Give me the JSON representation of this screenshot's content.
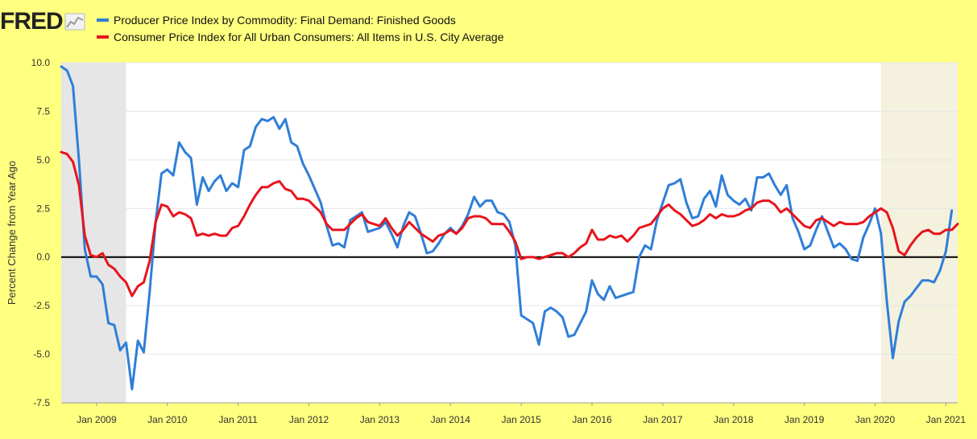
{
  "logo": {
    "text": "FRED",
    "icon": "chart-icon"
  },
  "chart_data": {
    "type": "line",
    "ylabel": "Percent Change from Year Ago",
    "ylim": [
      -7.5,
      10.0
    ],
    "yticks": [
      -7.5,
      -5.0,
      -2.5,
      0.0,
      2.5,
      5.0,
      7.5,
      10.0
    ],
    "ytick_labels": [
      "-7.5",
      "-5.0",
      "-2.5",
      "0.0",
      "2.5",
      "5.0",
      "7.5",
      "10.0"
    ],
    "xlim": [
      "2008-07",
      "2021-03"
    ],
    "xtick_labels": [
      "Jan 2009",
      "Jan 2010",
      "Jan 2011",
      "Jan 2012",
      "Jan 2013",
      "Jan 2014",
      "Jan 2015",
      "Jan 2016",
      "Jan 2017",
      "Jan 2018",
      "Jan 2019",
      "Jan 2020",
      "Jan 2021"
    ],
    "xtick_dates": [
      "2009-01",
      "2010-01",
      "2011-01",
      "2012-01",
      "2013-01",
      "2014-01",
      "2015-01",
      "2016-01",
      "2017-01",
      "2018-01",
      "2019-01",
      "2020-01",
      "2021-01"
    ],
    "grid": true,
    "zero_line": true,
    "legend_position": "top",
    "shaded_regions": [
      {
        "start": "2008-07",
        "end": "2009-06",
        "color": "#e6e6e6"
      },
      {
        "start": "2020-02",
        "end": "2021-03",
        "color": "#f4f1de"
      }
    ],
    "start": "2008-07",
    "series": [
      {
        "name": "Producer Price Index by Commodity: Final Demand: Finished Goods",
        "color": "#2f7ed8",
        "values": [
          9.8,
          9.6,
          8.8,
          5.0,
          0.4,
          -1.0,
          -1.0,
          -1.4,
          -3.4,
          -3.5,
          -4.8,
          -4.4,
          -6.8,
          -4.3,
          -4.9,
          -1.8,
          1.8,
          4.3,
          4.5,
          4.2,
          5.9,
          5.4,
          5.1,
          2.7,
          4.1,
          3.4,
          3.9,
          4.2,
          3.4,
          3.8,
          3.6,
          5.5,
          5.7,
          6.7,
          7.1,
          7.0,
          7.2,
          6.6,
          7.1,
          5.9,
          5.7,
          4.8,
          4.2,
          3.5,
          2.8,
          1.6,
          0.6,
          0.7,
          0.5,
          1.9,
          2.1,
          2.3,
          1.3,
          1.4,
          1.5,
          1.8,
          1.2,
          0.5,
          1.6,
          2.3,
          2.1,
          1.2,
          0.2,
          0.3,
          0.7,
          1.2,
          1.5,
          1.2,
          1.6,
          2.2,
          3.1,
          2.6,
          2.9,
          2.9,
          2.3,
          2.2,
          1.8,
          0.6,
          -3.0,
          -3.2,
          -3.4,
          -4.5,
          -2.8,
          -2.6,
          -2.8,
          -3.1,
          -4.1,
          -4.0,
          -3.4,
          -2.8,
          -1.2,
          -1.9,
          -2.2,
          -1.5,
          -2.1,
          -2.0,
          -1.9,
          -1.8,
          0.0,
          0.6,
          0.4,
          1.9,
          2.8,
          3.7,
          3.8,
          4.0,
          2.8,
          2.0,
          2.1,
          3.0,
          3.4,
          2.6,
          4.2,
          3.2,
          2.9,
          2.7,
          3.0,
          2.4,
          4.1,
          4.1,
          4.3,
          3.7,
          3.2,
          3.7,
          2.0,
          1.3,
          0.4,
          0.6,
          1.4,
          2.1,
          1.3,
          0.5,
          0.7,
          0.4,
          -0.1,
          -0.2,
          1.0,
          1.7,
          2.5,
          1.2,
          -2.3,
          -5.2,
          -3.3,
          -2.3,
          -2.0,
          -1.6,
          -1.2,
          -1.2,
          -1.3,
          -0.7,
          0.3,
          2.4
        ]
      },
      {
        "name": "Consumer Price Index for All Urban Consumers: All Items in U.S. City Average",
        "color": "#e8141c",
        "values": [
          5.4,
          5.3,
          4.9,
          3.7,
          1.1,
          0.1,
          0.0,
          0.2,
          -0.4,
          -0.6,
          -1.0,
          -1.3,
          -2.0,
          -1.5,
          -1.3,
          -0.2,
          1.8,
          2.7,
          2.6,
          2.1,
          2.3,
          2.2,
          2.0,
          1.1,
          1.2,
          1.1,
          1.2,
          1.1,
          1.1,
          1.5,
          1.6,
          2.1,
          2.7,
          3.2,
          3.6,
          3.6,
          3.8,
          3.9,
          3.5,
          3.4,
          3.0,
          3.0,
          2.9,
          2.6,
          2.3,
          1.7,
          1.4,
          1.4,
          1.4,
          1.7,
          2.0,
          2.2,
          1.8,
          1.7,
          1.6,
          2.0,
          1.5,
          1.1,
          1.4,
          1.8,
          1.5,
          1.2,
          1.0,
          0.8,
          1.1,
          1.2,
          1.4,
          1.2,
          1.5,
          2.0,
          2.1,
          2.1,
          2.0,
          1.7,
          1.7,
          1.7,
          1.3,
          0.8,
          -0.1,
          0.0,
          0.0,
          -0.1,
          0.0,
          0.1,
          0.2,
          0.2,
          0.0,
          0.2,
          0.5,
          0.7,
          1.4,
          0.9,
          0.9,
          1.1,
          1.0,
          1.1,
          0.8,
          1.1,
          1.5,
          1.6,
          1.7,
          2.1,
          2.5,
          2.7,
          2.4,
          2.2,
          1.9,
          1.6,
          1.7,
          1.9,
          2.2,
          2.0,
          2.2,
          2.1,
          2.1,
          2.2,
          2.4,
          2.5,
          2.8,
          2.9,
          2.9,
          2.7,
          2.3,
          2.5,
          2.2,
          1.9,
          1.6,
          1.5,
          1.9,
          2.0,
          1.8,
          1.6,
          1.8,
          1.7,
          1.7,
          1.7,
          1.8,
          2.1,
          2.3,
          2.5,
          2.3,
          1.5,
          0.3,
          0.1,
          0.6,
          1.0,
          1.3,
          1.4,
          1.2,
          1.2,
          1.4,
          1.4,
          1.7
        ]
      }
    ]
  }
}
